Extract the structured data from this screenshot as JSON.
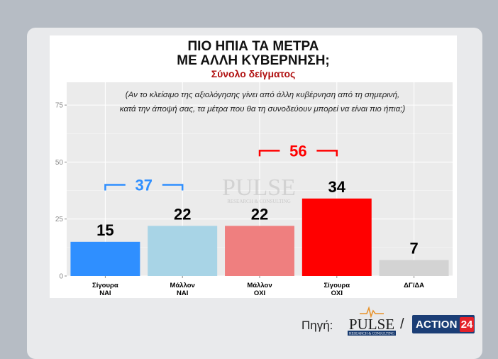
{
  "title_line1": "ΠΙΟ ΗΠΙΑ ΤΑ ΜΕΤΡΑ",
  "title_line2": "ΜΕ ΑΛΛΗ ΚΥΒΕΡΝΗΣΗ;",
  "subtitle": "Σύνολο δείγματος",
  "question_line1": "(Αν το κλείσιμο της αξιολόγησης γίνει από άλλη κυβέρνηση από τη σημερινή,",
  "question_line2": "κατά την άποψή σας, τα μέτρα που θα τη συνοδεύουν μπορεί να είναι πιο ήπια;)",
  "watermark": {
    "main": "PULSE",
    "sub": "RESEARCH & CONSULTING"
  },
  "source": {
    "label": "Πηγή:",
    "pulse_main": "PULSE",
    "pulse_sub": "RESEARCH & CONSULTING",
    "separator": "/",
    "action_word": "ACTION",
    "action_num": "24"
  },
  "chart_data": {
    "type": "bar",
    "categories": [
      [
        "Σίγουρα",
        "ΝΑΙ"
      ],
      [
        "Μάλλον",
        "ΝΑΙ"
      ],
      [
        "Μάλλον",
        "ΟΧΙ"
      ],
      [
        "Σίγουρα",
        "ΟΧΙ"
      ],
      [
        "ΔΓ/ΔΑ"
      ]
    ],
    "values": [
      15,
      22,
      22,
      34,
      7
    ],
    "colors": [
      "#2f8fff",
      "#a8d4e6",
      "#ef7f7f",
      "#ff0000",
      "#d3d3d3"
    ],
    "ylim": [
      0,
      85
    ],
    "yticks": [
      0,
      25,
      50,
      75
    ],
    "grid": true,
    "brackets": [
      {
        "label": "37",
        "from": 0,
        "to": 1,
        "color": "#2f8fff",
        "level": 40
      },
      {
        "label": "56",
        "from": 2,
        "to": 3,
        "color": "#ff0000",
        "level": 55
      }
    ]
  }
}
